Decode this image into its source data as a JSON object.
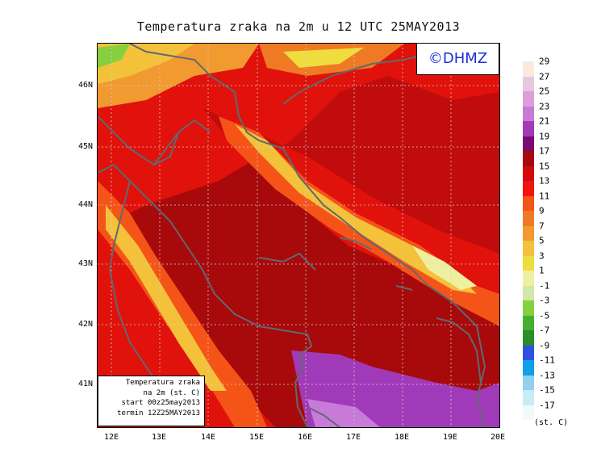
{
  "title": "Temperatura zraka na 2m u 12 UTC 25MAY2013",
  "copyright": "©DHMZ",
  "info_lines": [
    "Temperatura zraka",
    "na 2m (st. C)",
    "start 00z25may2013",
    "termin 12Z25MAY2013"
  ],
  "y_ticks": [
    "46N",
    "45N",
    "44N",
    "43N",
    "42N",
    "41N"
  ],
  "x_ticks": [
    "12E",
    "13E",
    "14E",
    "15E",
    "16E",
    "17E",
    "18E",
    "19E",
    "20E"
  ],
  "legend": {
    "labels": [
      "29",
      "27",
      "25",
      "23",
      "21",
      "19",
      "17",
      "15",
      "13",
      "11",
      "9",
      "7",
      "5",
      "3",
      "1",
      "-1",
      "-3",
      "-5",
      "-7",
      "-9",
      "-11",
      "-13",
      "-15",
      "-17"
    ],
    "colors": [
      "#fbeadc",
      "#e8c8e0",
      "#df9ed8",
      "#c77ad8",
      "#a13ab8",
      "#790a70",
      "#a80a0c",
      "#d20a0b",
      "#f0140c",
      "#f55418",
      "#ef7a24",
      "#f09a30",
      "#f3c23a",
      "#eedd3c",
      "#eef0a0",
      "#d0e8a8",
      "#86d040",
      "#44b030",
      "#2a8c2a",
      "#3050e0",
      "#10a0e8",
      "#90d0f0",
      "#c8ecf4",
      "#f0fafc"
    ],
    "unit": "(st. C)"
  },
  "colors": {
    "land_line": "#5e6a70",
    "sea": "#a80a0c",
    "grid": "#c8c8c8"
  }
}
